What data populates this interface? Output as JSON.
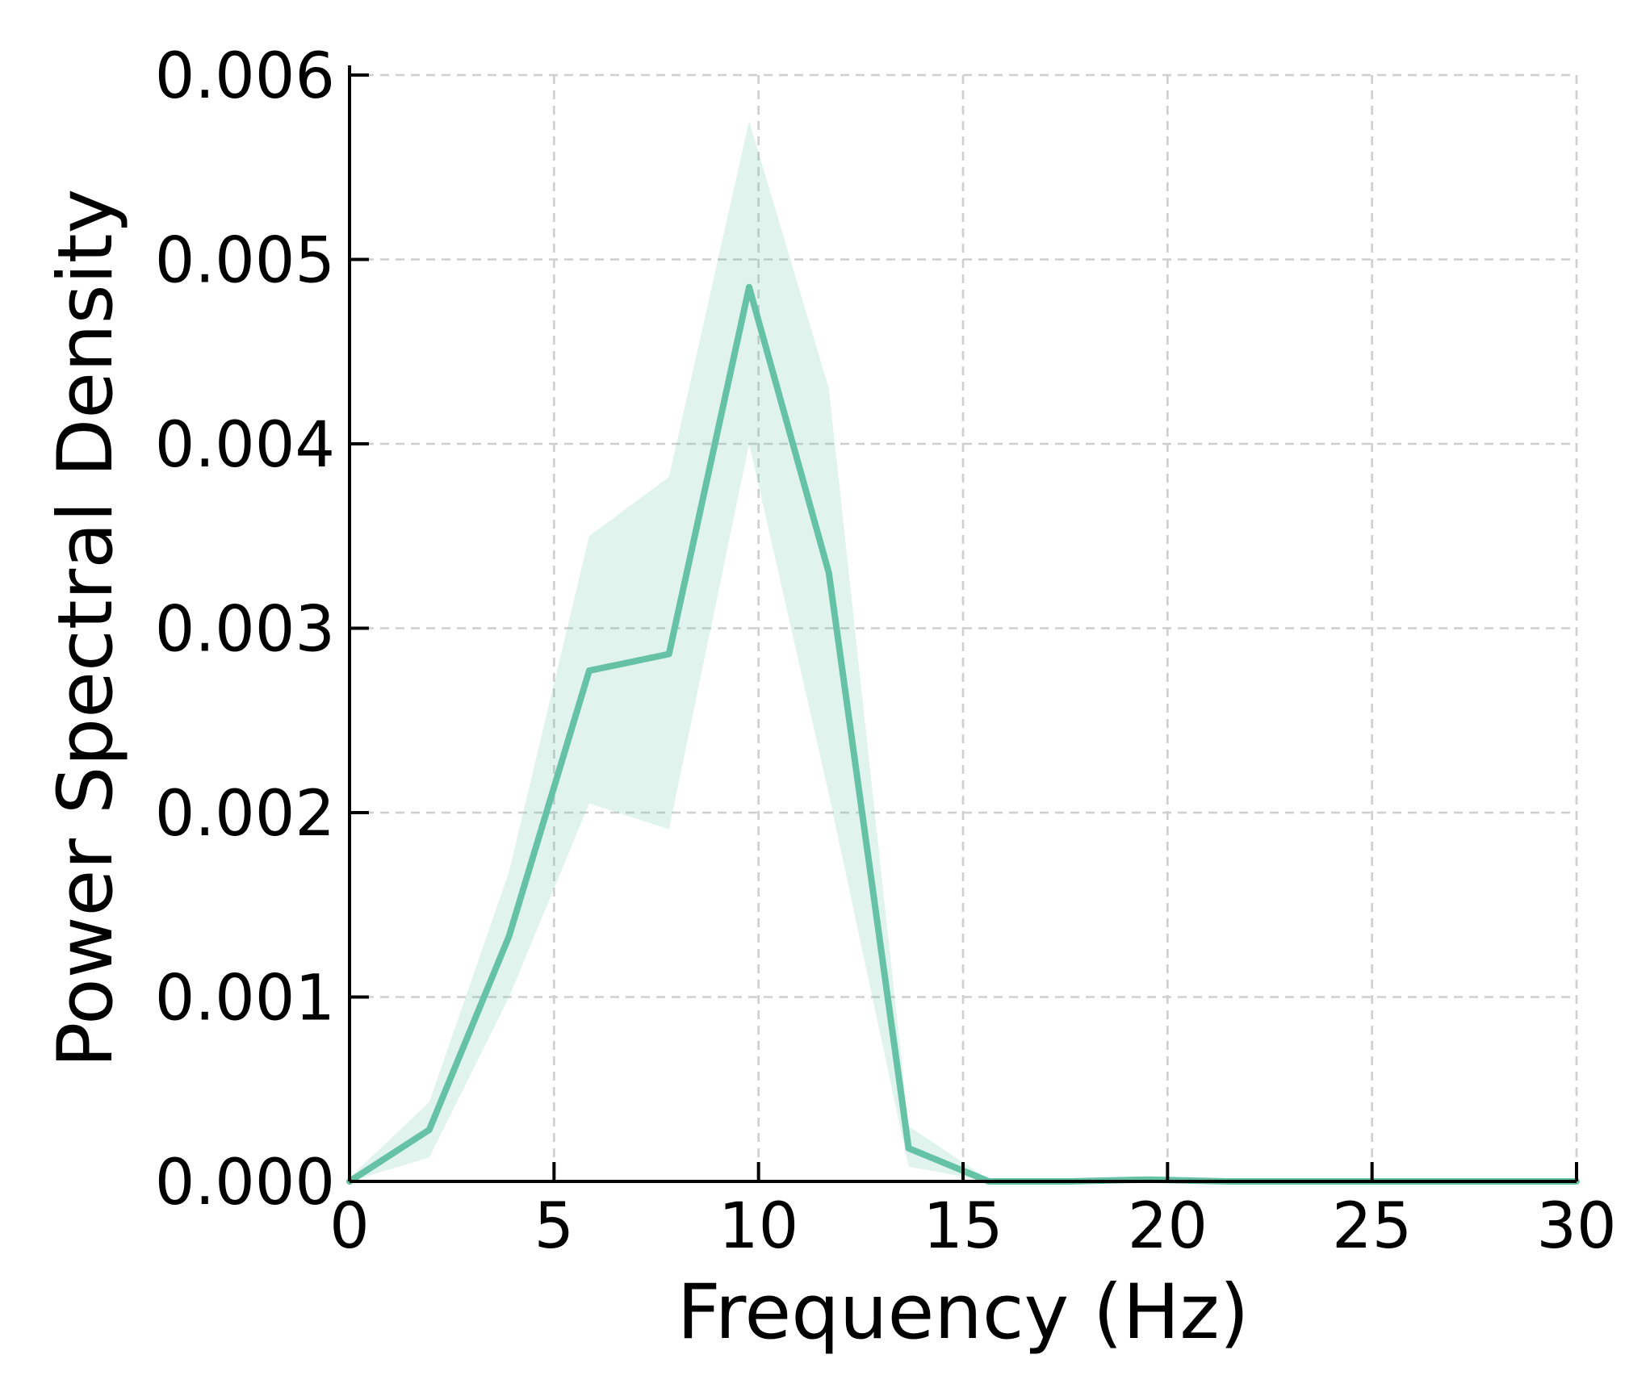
{
  "chart_data": {
    "type": "line",
    "title": "",
    "xlabel": "Frequency (Hz)",
    "ylabel": "Power Spectral Density",
    "xlim": [
      0,
      30
    ],
    "ylim": [
      0,
      0.006
    ],
    "xticks": [
      0,
      5,
      10,
      15,
      20,
      25,
      30
    ],
    "xtick_labels": [
      "0",
      "5",
      "10",
      "15",
      "20",
      "25",
      "30"
    ],
    "yticks": [
      0,
      0.001,
      0.002,
      0.003,
      0.004,
      0.005,
      0.006
    ],
    "ytick_labels": [
      "0.000",
      "0.001",
      "0.002",
      "0.003",
      "0.004",
      "0.005",
      "0.006"
    ],
    "grid": true,
    "series": [
      {
        "color": "#66c2a5",
        "x": [
          0,
          1.95,
          3.9,
          5.86,
          7.81,
          9.77,
          11.72,
          13.67,
          15.63,
          17.58,
          19.53,
          21.48,
          23.44,
          25.39,
          27.34,
          30
        ],
        "y": [
          0.0,
          0.00028,
          0.00133,
          0.00277,
          0.00286,
          0.00485,
          0.0033,
          0.00018,
          0.0,
          0.0,
          1e-05,
          0.0,
          0.0,
          0.0,
          0.0,
          0.0
        ],
        "band_lower": [
          0.0,
          0.00013,
          0.001,
          0.00205,
          0.00191,
          0.004,
          0.0021,
          8e-05,
          0.0,
          0.0,
          0.0,
          0.0,
          0.0,
          0.0,
          0.0,
          0.0
        ],
        "band_upper": [
          2e-05,
          0.00043,
          0.00168,
          0.0035,
          0.00382,
          0.00575,
          0.0043,
          0.0003,
          1e-05,
          1e-05,
          2e-05,
          1e-05,
          1e-05,
          1e-05,
          1e-05,
          1e-05
        ]
      }
    ]
  }
}
